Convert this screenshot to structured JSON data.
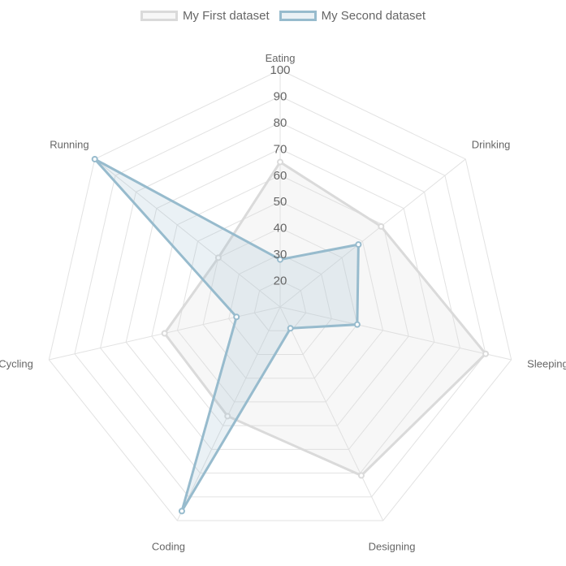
{
  "colors": {
    "grid": "#e2e2e2",
    "tick_text": "#666666",
    "label_text": "#666666",
    "series": [
      {
        "border": "#dadada",
        "fill": "rgba(220,220,220,0.22)",
        "point": "#dadada"
      },
      {
        "border": "#97bbcd",
        "fill": "rgba(151,187,205,0.20)",
        "point": "#97bbcd"
      }
    ]
  },
  "chart_data": {
    "type": "radar",
    "labels": [
      "Eating",
      "Drinking",
      "Sleeping",
      "Designing",
      "Coding",
      "Cycling",
      "Running"
    ],
    "r_range": [
      10,
      100
    ],
    "ticks": [
      20,
      30,
      40,
      50,
      60,
      70,
      80,
      90,
      100
    ],
    "series": [
      {
        "name": "My First dataset",
        "values": [
          65,
          59,
          90,
          81,
          56,
          55,
          40
        ]
      },
      {
        "name": "My Second dataset",
        "values": [
          28,
          48,
          40,
          19,
          96,
          27,
          100
        ]
      }
    ],
    "legend_position": "top",
    "grid": true
  }
}
